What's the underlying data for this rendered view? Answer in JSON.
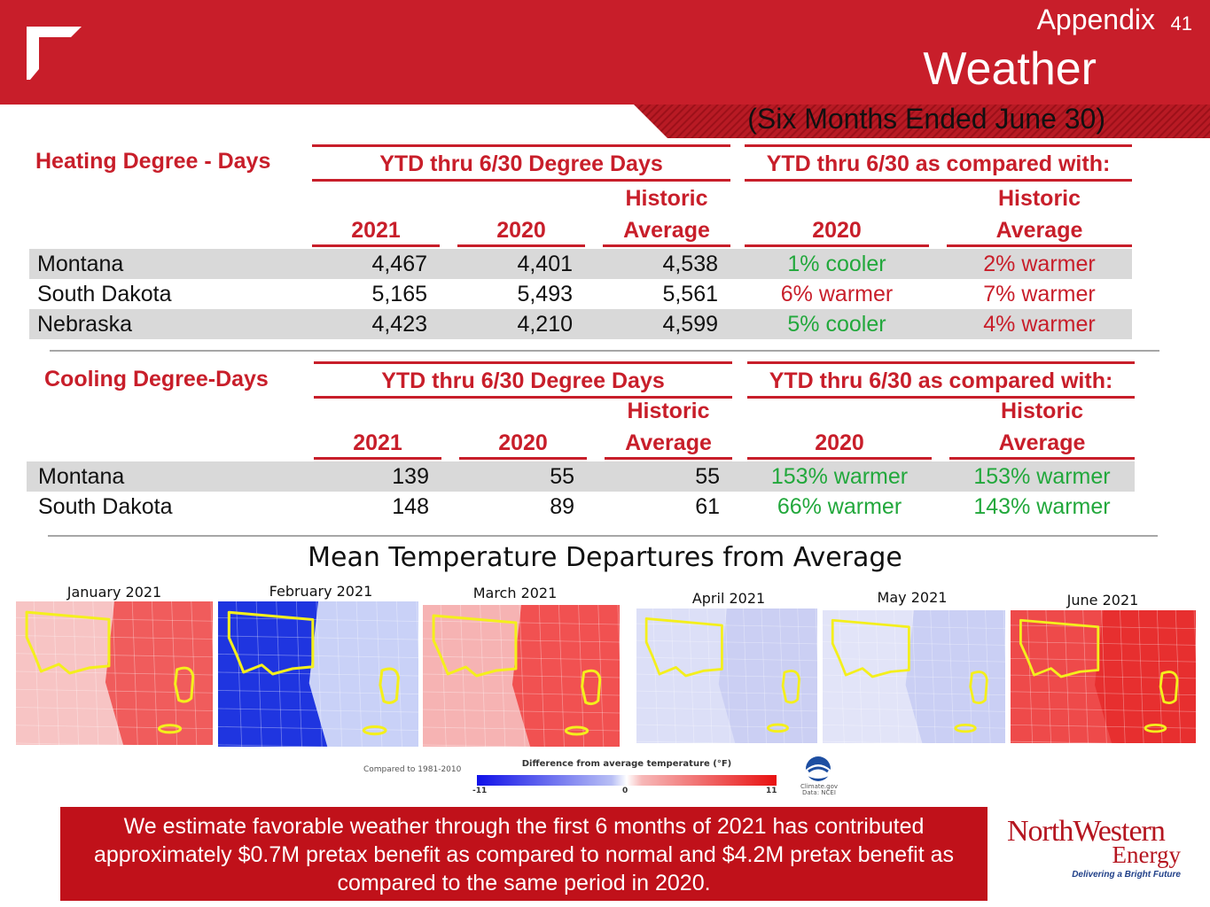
{
  "header": {
    "section": "Appendix",
    "page_number": "41",
    "title": "Weather",
    "subtitle": "(Six Months Ended June 30)"
  },
  "heating": {
    "title": "Heating Degree - Days",
    "group_left": "YTD thru 6/30 Degree Days",
    "group_right": "YTD thru 6/30 as compared with:",
    "columns": [
      "2021",
      "2020",
      "Historic",
      "Average",
      "2020",
      "Historic",
      "Average"
    ],
    "rows": [
      {
        "state": "Montana",
        "y2021": "4,467",
        "y2020": "4,401",
        "hist": "4,538",
        "vs2020": "1% cooler",
        "vsHist": "2% warmer"
      },
      {
        "state": "South Dakota",
        "y2021": "5,165",
        "y2020": "5,493",
        "hist": "5,561",
        "vs2020": "6% warmer",
        "vsHist": "7% warmer"
      },
      {
        "state": "Nebraska",
        "y2021": "4,423",
        "y2020": "4,210",
        "hist": "4,599",
        "vs2020": "5% cooler",
        "vsHist": "4% warmer"
      }
    ]
  },
  "cooling": {
    "title": "Cooling Degree-Days",
    "group_left": "YTD thru 6/30 Degree Days",
    "group_right": "YTD thru 6/30 as compared with:",
    "columns": [
      "2021",
      "2020",
      "Historic",
      "Average",
      "2020",
      "Historic",
      "Average"
    ],
    "rows": [
      {
        "state": "Montana",
        "y2021": "139",
        "y2020": "55",
        "hist": "55",
        "vs2020": "153% warmer",
        "vsHist": "153% warmer"
      },
      {
        "state": "South Dakota",
        "y2021": "148",
        "y2020": "89",
        "hist": "61",
        "vs2020": "66% warmer",
        "vsHist": "143% warmer"
      }
    ]
  },
  "maps": {
    "title": "Mean Temperature Departures from Average",
    "months": [
      {
        "label": "January 2021",
        "base": "#f7c4c4",
        "accent": "#ee4a4a"
      },
      {
        "label": "February 2021",
        "base": "#1f35e0",
        "accent": "#e8ecfa"
      },
      {
        "label": "March 2021",
        "base": "#f6b3b3",
        "accent": "#f04040"
      },
      {
        "label": "April 2021",
        "base": "#dcdff7",
        "accent": "#c8ccf2"
      },
      {
        "label": "May 2021",
        "base": "#e2e4f8",
        "accent": "#c6cbf3"
      },
      {
        "label": "June 2021",
        "base": "#ee4a4a",
        "accent": "#e52a2a"
      }
    ],
    "legend": {
      "compared": "Compared to 1981-2010",
      "title": "Difference from average temperature (°F)",
      "min": "-11",
      "mid": "0",
      "max": "11",
      "credit_line1": "Climate.gov",
      "credit_line2": "Data: NCEI"
    }
  },
  "footer": {
    "note": "We estimate favorable weather through the first 6 months of 2021 has contributed approximately $0.7M pretax benefit as compared to normal and $4.2M pretax benefit as compared to the same period in 2020.",
    "logo_line1": "NorthWestern",
    "logo_line2": "Energy",
    "logo_tagline": "Delivering a Bright Future"
  }
}
